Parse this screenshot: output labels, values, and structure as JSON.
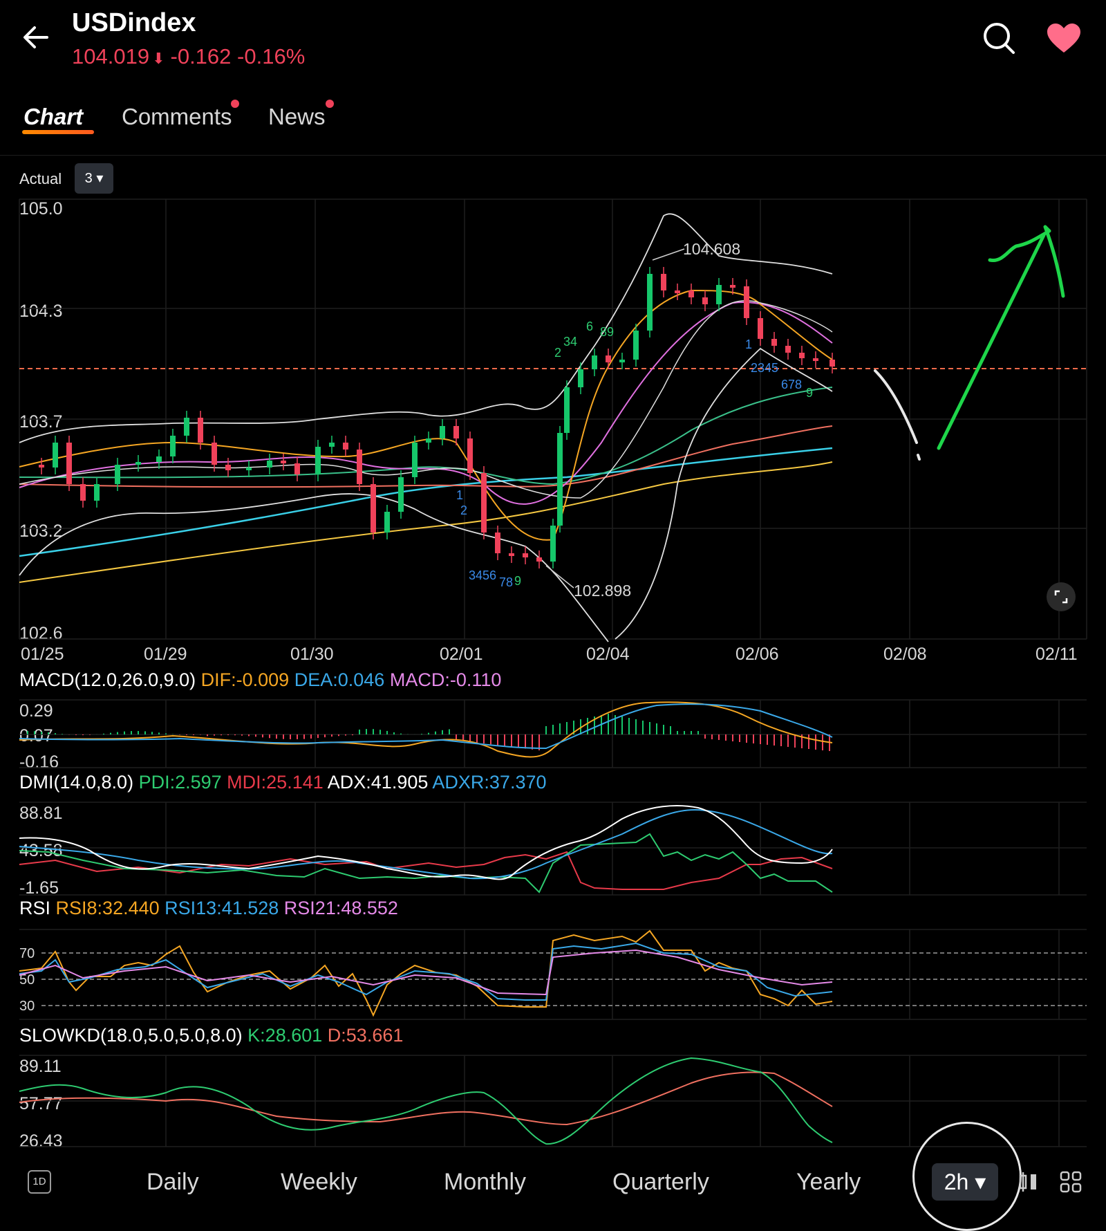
{
  "header": {
    "title": "USDindex",
    "price": "104.019",
    "change": "-0.162",
    "change_pct": "-0.16%",
    "down_arrow": "⬇"
  },
  "tabs": [
    {
      "label": "Chart",
      "active": true
    },
    {
      "label": "Comments",
      "has_dot": true
    },
    {
      "label": "News",
      "has_dot": true
    }
  ],
  "toolbar": {
    "actual_label": "Actual",
    "actual_value": "3 ▾"
  },
  "main_chart": {
    "y_labels": [
      "105.0",
      "104.3",
      "103.7",
      "103.2",
      "102.6"
    ],
    "x_labels": [
      "01/25",
      "01/29",
      "01/30",
      "02/01",
      "02/04",
      "02/06",
      "02/08",
      "02/11"
    ],
    "high_label": "104.608",
    "low_label": "102.898",
    "td_counts": [
      "2",
      "34",
      "6",
      "89",
      "1",
      "2345",
      "678",
      "9",
      "1",
      "2",
      "3456",
      "78",
      "9"
    ]
  },
  "macd": {
    "title": "MACD(12.0,26.0,9.0)",
    "dif": "DIF:-0.009",
    "dea": "DEA:0.046",
    "macd": "MACD:-0.110",
    "y_labels": [
      "0.29",
      "0.07",
      "-0.16"
    ]
  },
  "dmi": {
    "title": "DMI(14.0,8.0)",
    "pdi": "PDI:2.597",
    "mdi": "MDI:25.141",
    "adx": "ADX:41.905",
    "adxr": "ADXR:37.370",
    "y_labels": [
      "88.81",
      "43.58",
      "-1.65"
    ]
  },
  "rsi": {
    "title": "RSI",
    "rsi8": "RSI8:32.440",
    "rsi13": "RSI13:41.528",
    "rsi21": "RSI21:48.552",
    "y_labels": [
      "70",
      "50",
      "30"
    ]
  },
  "slowkd": {
    "title": "SLOWKD(18.0,5.0,5.0,8.0)",
    "k": "K:28.601",
    "d": "D:53.661",
    "y_labels": [
      "89.11",
      "57.77",
      "26.43"
    ]
  },
  "bottom_bar": {
    "badge": "1D",
    "periods": [
      "Daily",
      "Weekly",
      "Monthly",
      "Quarterly",
      "Yearly"
    ],
    "selected": "2h ▾"
  },
  "icons": [
    "back-arrow-icon",
    "search-icon",
    "heart-icon",
    "expand-icon",
    "candlestick-icon",
    "grid-icon"
  ],
  "colors": {
    "down": "#f0425a",
    "up": "#16c76b",
    "orange": "#f5a623",
    "blue": "#3aa8e8",
    "pink": "#e58ae8",
    "green": "#2ecc71"
  }
}
